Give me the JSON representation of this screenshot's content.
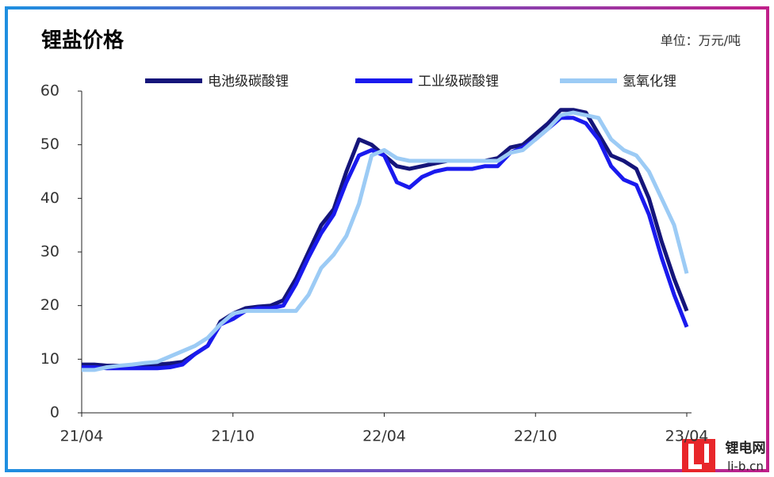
{
  "chart_data": {
    "type": "line",
    "title": "锂盐价格",
    "unit": "单位：万元/吨",
    "logo_text": "锂电网",
    "logo_url": "li-b.cn",
    "categories": [
      "21/04",
      null,
      null,
      null,
      null,
      null,
      null,
      null,
      null,
      null,
      null,
      null,
      "21/10",
      null,
      null,
      null,
      null,
      null,
      null,
      null,
      null,
      null,
      null,
      null,
      "22/04",
      null,
      null,
      null,
      null,
      null,
      null,
      null,
      null,
      null,
      null,
      null,
      "22/10",
      null,
      null,
      null,
      null,
      null,
      null,
      null,
      null,
      null,
      null,
      null,
      "23/04"
    ],
    "series": [
      {
        "name": "电池级碳酸锂",
        "color": "#15157a",
        "values": [
          9,
          9,
          8.8,
          8.8,
          8.8,
          9,
          9,
          9.2,
          9.5,
          11,
          12.5,
          17,
          18.5,
          19.5,
          19.8,
          20,
          21,
          25,
          30,
          35,
          38,
          45,
          51,
          50,
          48,
          46,
          45.5,
          46,
          46.5,
          47,
          47,
          47,
          47,
          47.5,
          49.5,
          50,
          52,
          54,
          56.5,
          56.5,
          56,
          52,
          48,
          47,
          45.5,
          40,
          32,
          25,
          19
        ]
      },
      {
        "name": "工业级碳酸锂",
        "color": "#1a1aee",
        "values": [
          8.5,
          8.5,
          8.3,
          8.3,
          8.3,
          8.3,
          8.3,
          8.5,
          9,
          11,
          12.5,
          16.5,
          17.5,
          19,
          19.5,
          19.5,
          20,
          24,
          29,
          33.5,
          37,
          43,
          48,
          49,
          48,
          43,
          42,
          44,
          45,
          45.5,
          45.5,
          45.5,
          46,
          46,
          48.5,
          49.5,
          51,
          53,
          55,
          55,
          54,
          51,
          46,
          43.5,
          42.5,
          37,
          29,
          22,
          16
        ]
      },
      {
        "name": "氢氧化锂",
        "color": "#9ccbf5",
        "values": [
          8,
          8,
          8.5,
          8.8,
          9,
          9.3,
          9.5,
          10.5,
          11.5,
          12.5,
          14,
          16.5,
          18.5,
          19,
          19,
          19,
          19,
          19,
          22,
          27,
          29.5,
          33,
          39,
          48,
          49,
          47.5,
          47,
          47,
          47,
          47,
          47,
          47,
          47,
          47,
          48.5,
          49,
          51,
          53,
          55.5,
          56,
          55.5,
          55,
          51,
          49,
          48,
          45,
          40,
          35,
          26
        ]
      }
    ],
    "ylim": [
      0,
      60
    ],
    "yticks": [
      0,
      10,
      20,
      30,
      40,
      50,
      60
    ],
    "grid": false
  }
}
